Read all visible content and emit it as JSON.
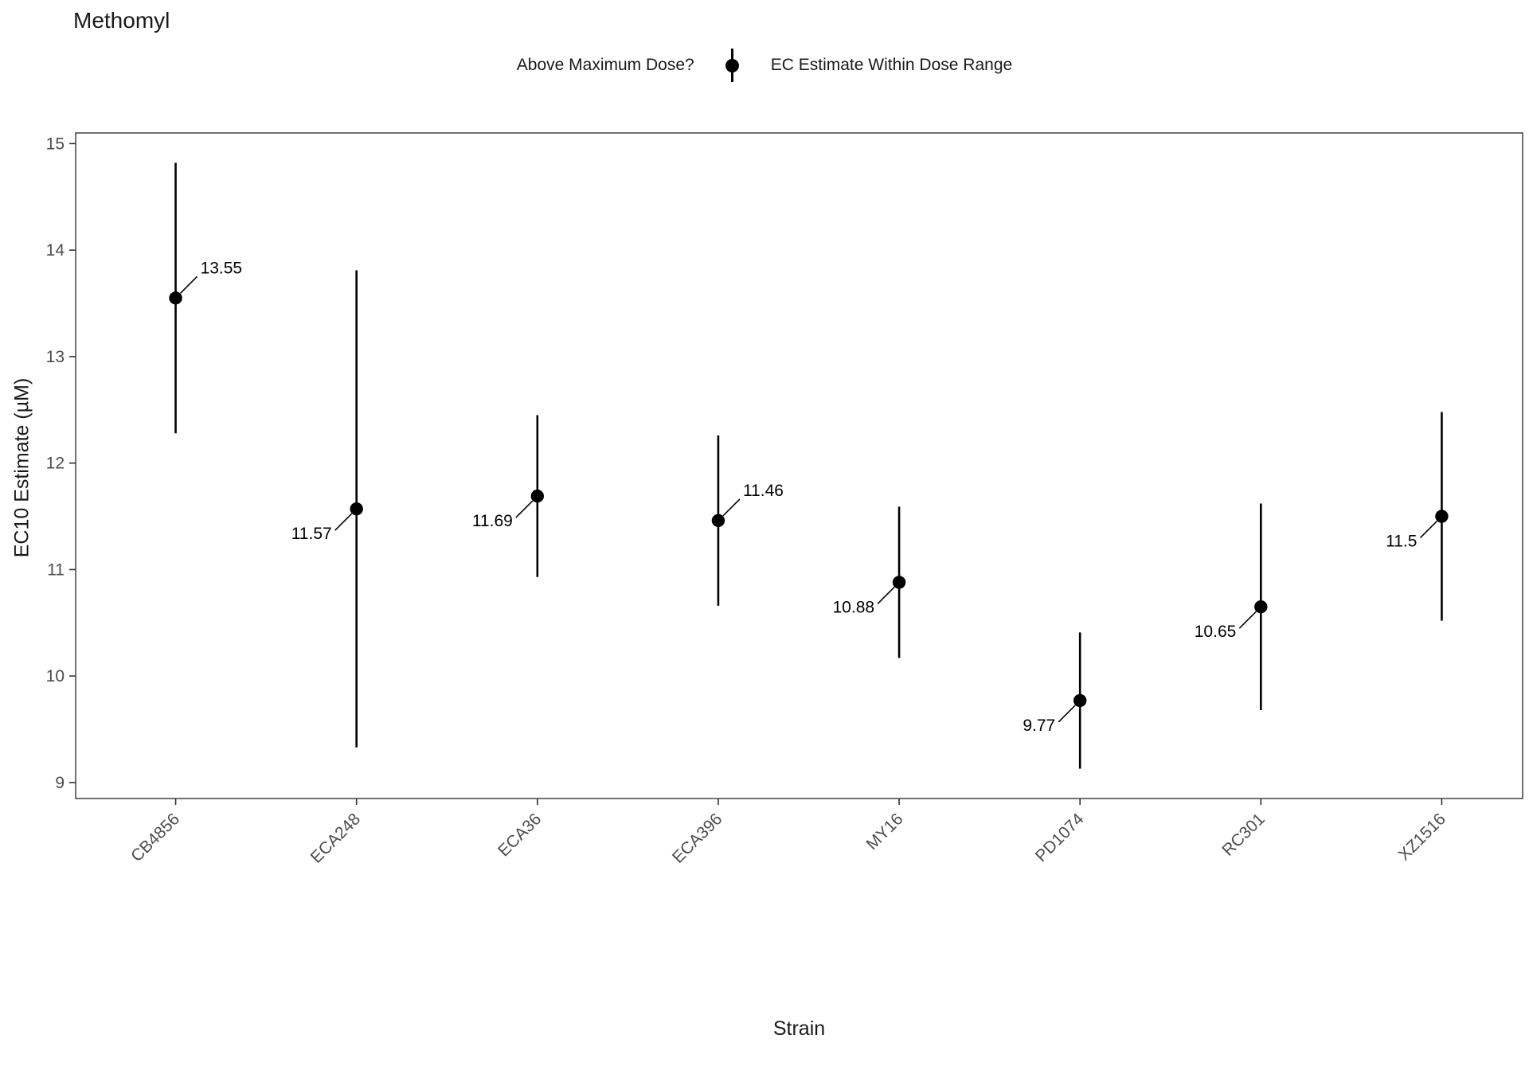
{
  "title": "Methomyl",
  "legend": {
    "title": "Above Maximum Dose?",
    "entry": "EC Estimate Within Dose Range"
  },
  "axes": {
    "x_title": "Strain",
    "y_title": "EC10 Estimate (µM)"
  },
  "chart_data": {
    "type": "pointrange",
    "title": "Methomyl",
    "xlabel": "Strain",
    "ylabel": "EC10 Estimate (µM)",
    "ylim": [
      8.85,
      15.1
    ],
    "yticks": [
      9,
      10,
      11,
      12,
      13,
      14,
      15
    ],
    "grid": "off",
    "legend_position": "top",
    "point_color": "#000000",
    "axis_text_color": "#4d4d4d",
    "categories": [
      "CB4856",
      "ECA248",
      "ECA36",
      "ECA396",
      "MY16",
      "PD1074",
      "RC301",
      "XZ1516"
    ],
    "series": [
      {
        "strain": "CB4856",
        "estimate": 13.55,
        "lower": 12.28,
        "upper": 14.82,
        "label": "13.55",
        "label_side": "ne"
      },
      {
        "strain": "ECA248",
        "estimate": 11.57,
        "lower": 9.33,
        "upper": 13.81,
        "label": "11.57",
        "label_side": "sw"
      },
      {
        "strain": "ECA36",
        "estimate": 11.69,
        "lower": 10.93,
        "upper": 12.45,
        "label": "11.69",
        "label_side": "sw"
      },
      {
        "strain": "ECA396",
        "estimate": 11.46,
        "lower": 10.66,
        "upper": 12.26,
        "label": "11.46",
        "label_side": "ne"
      },
      {
        "strain": "MY16",
        "estimate": 10.88,
        "lower": 10.17,
        "upper": 11.59,
        "label": "10.88",
        "label_side": "sw"
      },
      {
        "strain": "PD1074",
        "estimate": 9.77,
        "lower": 9.13,
        "upper": 10.41,
        "label": "9.77",
        "label_side": "sw"
      },
      {
        "strain": "RC301",
        "estimate": 10.65,
        "lower": 9.68,
        "upper": 11.62,
        "label": "10.65",
        "label_side": "sw"
      },
      {
        "strain": "XZ1516",
        "estimate": 11.5,
        "lower": 10.52,
        "upper": 12.48,
        "label": "11.5",
        "label_side": "sw"
      }
    ]
  }
}
